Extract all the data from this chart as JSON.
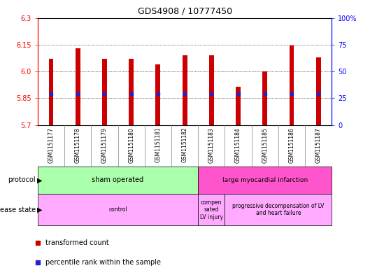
{
  "title": "GDS4908 / 10777450",
  "samples": [
    "GSM1151177",
    "GSM1151178",
    "GSM1151179",
    "GSM1151180",
    "GSM1151181",
    "GSM1151182",
    "GSM1151183",
    "GSM1151184",
    "GSM1151185",
    "GSM1151186",
    "GSM1151187"
  ],
  "bar_tops": [
    6.07,
    6.13,
    6.07,
    6.07,
    6.04,
    6.09,
    6.09,
    5.915,
    6.0,
    6.145,
    6.08
  ],
  "bar_bottom": 5.7,
  "percentile_values": [
    5.875,
    5.875,
    5.875,
    5.875,
    5.875,
    5.875,
    5.875,
    5.875,
    5.875,
    5.875,
    5.875
  ],
  "ylim": [
    5.7,
    6.3
  ],
  "yticks_left": [
    5.7,
    5.85,
    6.0,
    6.15,
    6.3
  ],
  "yticks_right_labels": [
    "0",
    "25",
    "50",
    "75",
    "100%"
  ],
  "bar_color": "#cc0000",
  "percentile_color": "#2222cc",
  "bar_width": 0.18,
  "protocol_groups": [
    {
      "label": "sham operated",
      "start": 0,
      "end": 6,
      "color": "#aaffaa"
    },
    {
      "label": "large myocardial infarction",
      "start": 6,
      "end": 11,
      "color": "#ff55cc"
    }
  ],
  "disease_groups": [
    {
      "label": "control",
      "start": 0,
      "end": 6,
      "color": "#ffaaff"
    },
    {
      "label": "compen\nsated\nLV injury",
      "start": 6,
      "end": 7,
      "color": "#ffaaff"
    },
    {
      "label": "progressive decompensation of LV\nand heart failure",
      "start": 7,
      "end": 11,
      "color": "#ffaaff"
    }
  ],
  "legend_items": [
    {
      "color": "#cc0000",
      "label": "transformed count"
    },
    {
      "color": "#2222cc",
      "label": "percentile rank within the sample"
    }
  ],
  "dotted_yticks": [
    5.85,
    6.0,
    6.15
  ],
  "xlabel_bg": "#cccccc",
  "plot_bg": "#ffffff"
}
